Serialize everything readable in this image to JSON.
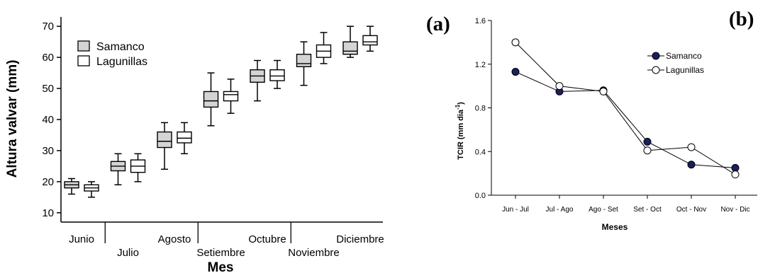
{
  "panel_labels": {
    "a": "(a)",
    "b": "(b)"
  },
  "chart_data": [
    {
      "type": "box",
      "xlabel": "Mes",
      "ylabel": "Altura valvar (mm)",
      "ylim": [
        7,
        73
      ],
      "yticks": [
        10,
        20,
        30,
        40,
        50,
        60,
        70
      ],
      "categories": [
        "Junio",
        "Julio",
        "Agosto",
        "Setiembre",
        "Octubre",
        "Noviembre",
        "Diciembre"
      ],
      "series": [
        {
          "name": "Samanco",
          "color": "#d4d4d4",
          "boxes": [
            {
              "whislo": 16,
              "q1": 18,
              "med": 19,
              "q3": 20,
              "whishi": 21
            },
            {
              "whislo": 19,
              "q1": 23.5,
              "med": 25,
              "q3": 26.5,
              "whishi": 29
            },
            {
              "whislo": 24,
              "q1": 31,
              "med": 33,
              "q3": 36,
              "whishi": 39
            },
            {
              "whislo": 38,
              "q1": 44,
              "med": 46,
              "q3": 49,
              "whishi": 55
            },
            {
              "whislo": 46,
              "q1": 52,
              "med": 54,
              "q3": 56,
              "whishi": 59
            },
            {
              "whislo": 51,
              "q1": 57,
              "med": 58,
              "q3": 61,
              "whishi": 65
            },
            {
              "whislo": 60,
              "q1": 61,
              "med": 62,
              "q3": 65,
              "whishi": 70
            }
          ]
        },
        {
          "name": "Lagunillas",
          "color": "#ffffff",
          "boxes": [
            {
              "whislo": 15,
              "q1": 17,
              "med": 18,
              "q3": 19,
              "whishi": 20
            },
            {
              "whislo": 20,
              "q1": 23,
              "med": 25,
              "q3": 27,
              "whishi": 29
            },
            {
              "whislo": 29,
              "q1": 32.5,
              "med": 34,
              "q3": 36,
              "whishi": 39
            },
            {
              "whislo": 42,
              "q1": 46,
              "med": 48,
              "q3": 49,
              "whishi": 53
            },
            {
              "whislo": 50,
              "q1": 52.5,
              "med": 54,
              "q3": 56,
              "whishi": 59
            },
            {
              "whislo": 58,
              "q1": 60,
              "med": 62,
              "q3": 64,
              "whishi": 68
            },
            {
              "whislo": 62,
              "q1": 64,
              "med": 65,
              "q3": 67,
              "whishi": 70
            }
          ]
        }
      ],
      "legend": "top-left"
    },
    {
      "type": "line",
      "xlabel": "Meses",
      "ylabel": "TCIR (mm dia",
      "ylabel_exp": "-1",
      "ylim": [
        0,
        1.6
      ],
      "yticks": [
        "0.0",
        "0.4",
        "0.8",
        "1.2",
        "1.6"
      ],
      "categories": [
        "Jun - Jul",
        "Jul - Ago",
        "Ago - Set",
        "Set - Oct",
        "Oct - Nov",
        "Nov - Dic"
      ],
      "series": [
        {
          "name": "Samanco",
          "marker": "filled",
          "color": "#1a1f5e",
          "values": [
            1.13,
            0.95,
            0.96,
            0.49,
            0.28,
            0.25
          ]
        },
        {
          "name": "Lagunillas",
          "marker": "open",
          "color": "#ffffff",
          "values": [
            1.4,
            1.0,
            0.95,
            0.41,
            0.44,
            0.19
          ]
        }
      ],
      "legend": "top-right"
    }
  ]
}
